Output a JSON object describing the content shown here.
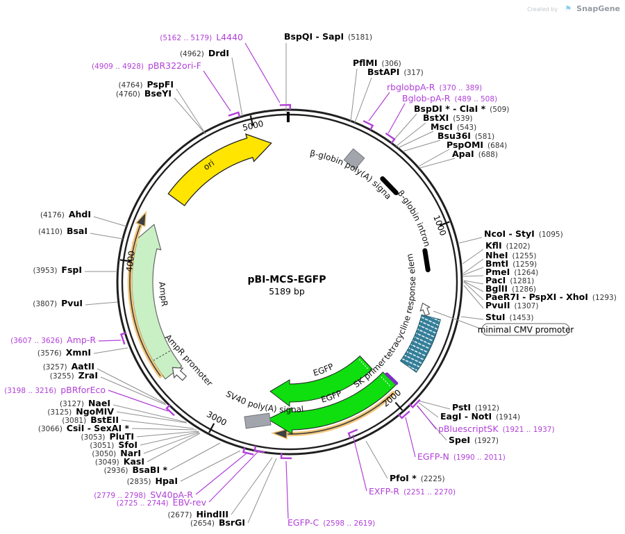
{
  "watermark": {
    "created_by": "Created by",
    "flag_icon": "⚑",
    "brand": "SnapGene"
  },
  "plasmid": {
    "name": "pBI-MCS-EGFP",
    "size_label": "5189 bp"
  },
  "positions": [
    "1000",
    "2000",
    "3000",
    "4000",
    "5000"
  ],
  "features": {
    "ori": "ori",
    "ampr": "AmpR",
    "ampr_promoter": "AmpR promoter",
    "bglobin_polya": "β-globin poly(A) signal",
    "bglobin_intron": "β-globin intron",
    "tre": "tetracycline response element",
    "min_cmv": "minimal CMV promoter",
    "egfp_inner": "EGFP",
    "egfp_outer": "EGFP",
    "sk_primer": "SK primer",
    "sv40_polya": "SV40 poly(A) signal"
  },
  "enzymes": [
    {
      "name": "BspQI - SapI",
      "pos": "(5181)"
    },
    {
      "name": "DrdI",
      "pos": "(4962)"
    },
    {
      "name": "PspFI",
      "pos": "(4764)"
    },
    {
      "name": "BseYI",
      "pos": "(4760)"
    },
    {
      "name": "PflMI",
      "pos": "(306)"
    },
    {
      "name": "BstAPI",
      "pos": "(317)"
    },
    {
      "name": "BspDI * - ClaI *",
      "pos": "(509)"
    },
    {
      "name": "BstXI",
      "pos": "(539)"
    },
    {
      "name": "MscI",
      "pos": "(543)"
    },
    {
      "name": "Bsu36I",
      "pos": "(581)"
    },
    {
      "name": "PspOMI",
      "pos": "(684)"
    },
    {
      "name": "ApaI",
      "pos": "(688)"
    },
    {
      "name": "NcoI - StyI",
      "pos": "(1095)"
    },
    {
      "name": "KflI",
      "pos": "(1202)"
    },
    {
      "name": "NheI",
      "pos": "(1255)"
    },
    {
      "name": "BmtI",
      "pos": "(1259)"
    },
    {
      "name": "PmeI",
      "pos": "(1264)"
    },
    {
      "name": "PacI",
      "pos": "(1281)"
    },
    {
      "name": "BglII",
      "pos": "(1286)"
    },
    {
      "name": "PaeR7I - PspXI - XhoI",
      "pos": "(1293)"
    },
    {
      "name": "PvuII",
      "pos": "(1307)"
    },
    {
      "name": "StuI",
      "pos": "(1453)"
    },
    {
      "name": "PstI",
      "pos": "(1912)"
    },
    {
      "name": "EagI - NotI",
      "pos": "(1914)"
    },
    {
      "name": "SpeI",
      "pos": "(1927)"
    },
    {
      "name": "PfoI *",
      "pos": "(2225)"
    },
    {
      "name": "BsrGI",
      "pos": "(2654)"
    },
    {
      "name": "HindIII",
      "pos": "(2677)"
    },
    {
      "name": "HpaI",
      "pos": "(2835)"
    },
    {
      "name": "BsaBI *",
      "pos": "(2936)"
    },
    {
      "name": "KasI",
      "pos": "(3049)"
    },
    {
      "name": "NarI",
      "pos": "(3050)"
    },
    {
      "name": "SfoI",
      "pos": "(3051)"
    },
    {
      "name": "PluTI",
      "pos": "(3053)"
    },
    {
      "name": "CsiI - SexAI *",
      "pos": "(3066)"
    },
    {
      "name": "BstEII",
      "pos": "(3081)"
    },
    {
      "name": "NgoMIV",
      "pos": "(3125)"
    },
    {
      "name": "NaeI",
      "pos": "(3127)"
    },
    {
      "name": "ZraI",
      "pos": "(3255)"
    },
    {
      "name": "AatII",
      "pos": "(3257)"
    },
    {
      "name": "XmnI",
      "pos": "(3576)"
    },
    {
      "name": "PvuI",
      "pos": "(3807)"
    },
    {
      "name": "FspI",
      "pos": "(3953)"
    },
    {
      "name": "BsaI",
      "pos": "(4110)"
    },
    {
      "name": "AhdI",
      "pos": "(4176)"
    }
  ],
  "primers": [
    {
      "name": "L4440",
      "range": "(5162 .. 5179)"
    },
    {
      "name": "pBR322ori-F",
      "range": "(4909 .. 4928)"
    },
    {
      "name": "rbglobpA-R",
      "range": "(370 .. 389)"
    },
    {
      "name": "Bglob-pA-R",
      "range": "(489 .. 508)"
    },
    {
      "name": "pBluescriptSK",
      "range": "(1921 .. 1937)"
    },
    {
      "name": "EGFP-N",
      "range": "(1990 .. 2011)"
    },
    {
      "name": "EXFP-R",
      "range": "(2251 .. 2270)"
    },
    {
      "name": "EGFP-C",
      "range": "(2598 .. 2619)"
    },
    {
      "name": "SV40pA-R",
      "range": "(2779 .. 2798)"
    },
    {
      "name": "EBV-rev",
      "range": "(2725 .. 2744)"
    },
    {
      "name": "pBRforEco",
      "range": "(3198 .. 3216)"
    },
    {
      "name": "Amp-R",
      "range": "(3607 .. 3626)"
    }
  ],
  "colors": {
    "primer": "#B13FD8",
    "callout": "#8F8F8F",
    "ring": "#1F1F1F",
    "ori_yellow": "#FFE500",
    "amp_green": "#C9EFC5",
    "egfp_green": "#0FDE0F",
    "tre_teal": "#337E99",
    "marker_gray": "#A2A6AC",
    "orf_orange": "#F4C87D",
    "sk_purple": "#7B2FC0"
  }
}
